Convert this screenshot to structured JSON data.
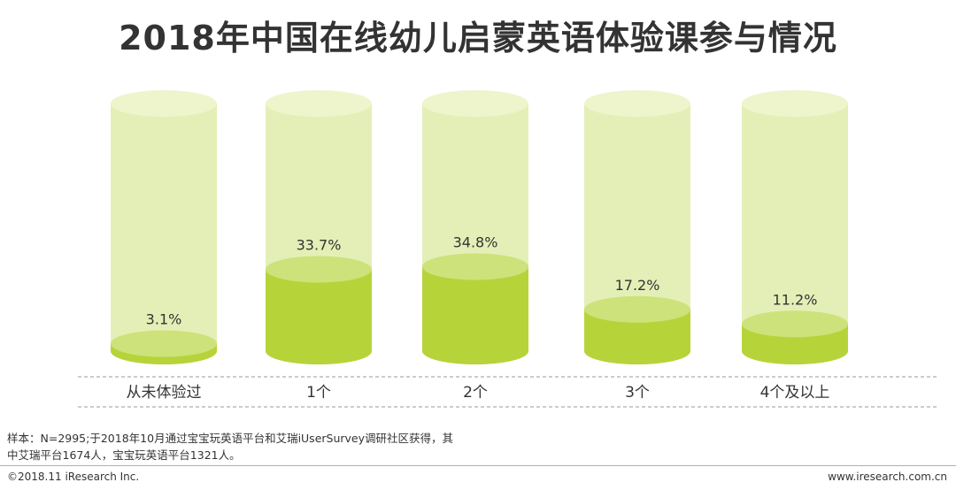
{
  "colors": {
    "cylinder_empty": "#e4efb7",
    "cylinder_empty_top": "#eef5cc",
    "cylinder_fill": "#b6d43a",
    "cylinder_fill_top": "#cde27a",
    "text": "#333333",
    "axis": "#9a9a9a"
  },
  "chart_data": {
    "type": "bar",
    "title": "2018年中国在线幼儿启蒙英语体验课参与情况",
    "categories": [
      "从未体验过",
      "1个",
      "2个",
      "3个",
      "4个及以上"
    ],
    "values": [
      3.1,
      33.7,
      34.8,
      17.2,
      11.2
    ],
    "data_labels": [
      "3.1%",
      "33.7%",
      "34.8%",
      "17.2%",
      "11.2%"
    ],
    "ylim": [
      0,
      100
    ],
    "xlabel": "",
    "ylabel": "",
    "grid": false
  },
  "footer": {
    "source_line1": "样本：N=2995;于2018年10月通过宝宝玩英语平台和艾瑞iUserSurvey调研社区获得，其",
    "source_line2": "中艾瑞平台1674人，宝宝玩英语平台1321人。",
    "copyright": "©2018.11 iResearch Inc.",
    "website": "www.iresearch.com.cn"
  }
}
